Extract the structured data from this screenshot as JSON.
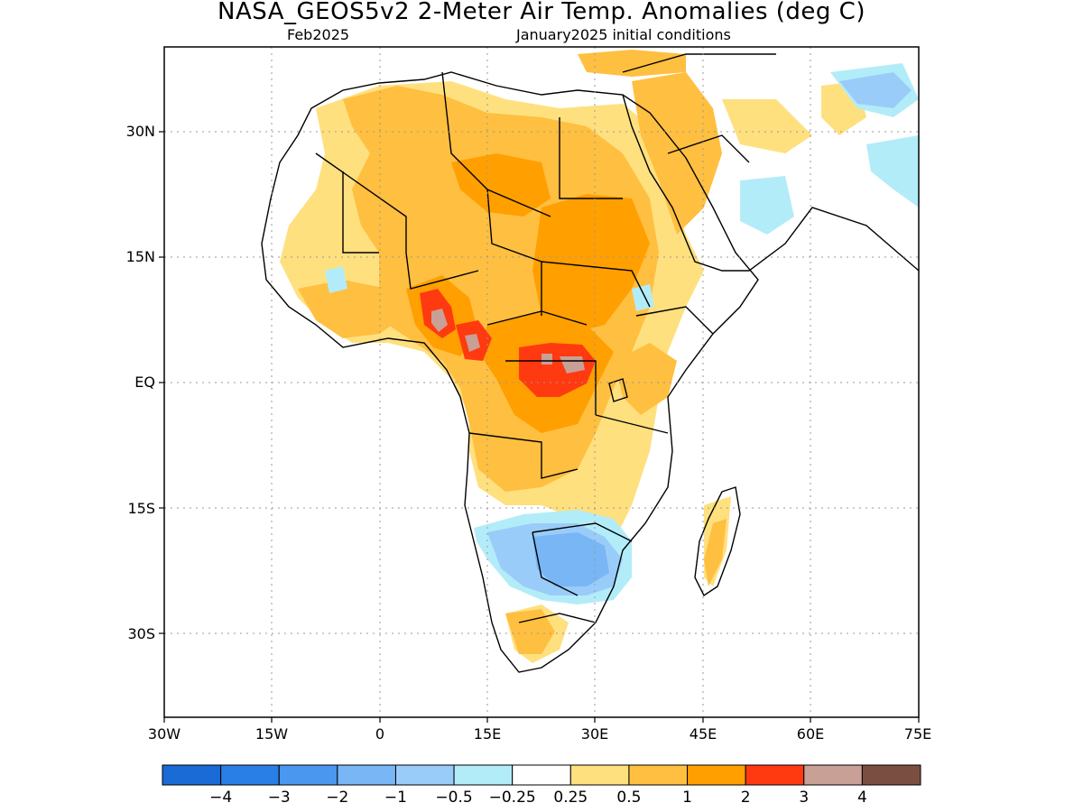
{
  "title": "NASA_GEOS5v2 2-Meter Air Temp. Anomalies (deg C)",
  "subtitle_left": "Feb2025",
  "subtitle_right": "January2025 initial conditions",
  "map": {
    "lon_range": [
      -30,
      75
    ],
    "lat_range": [
      -40,
      40
    ],
    "lat_ticks": [
      "30N",
      "15N",
      "EQ",
      "15S",
      "30S"
    ],
    "lon_ticks": [
      "30W",
      "15W",
      "0",
      "15E",
      "30E",
      "45E",
      "60E",
      "75E"
    ],
    "grid": "dotted"
  },
  "colorbar": {
    "colors": [
      "#1a6bd6",
      "#2a7fe6",
      "#4a97ef",
      "#78b6f5",
      "#99ccf8",
      "#b3ecf9",
      "#ffffff",
      "#ffe07f",
      "#ffbf40",
      "#ff9f00",
      "#ff3a10",
      "#c8a096",
      "#7a4e40"
    ],
    "labels": [
      "-4",
      "-3",
      "-2",
      "-1",
      "-0.5",
      "-0.25",
      "0.25",
      "0.5",
      "1",
      "2",
      "3",
      "4"
    ]
  }
}
